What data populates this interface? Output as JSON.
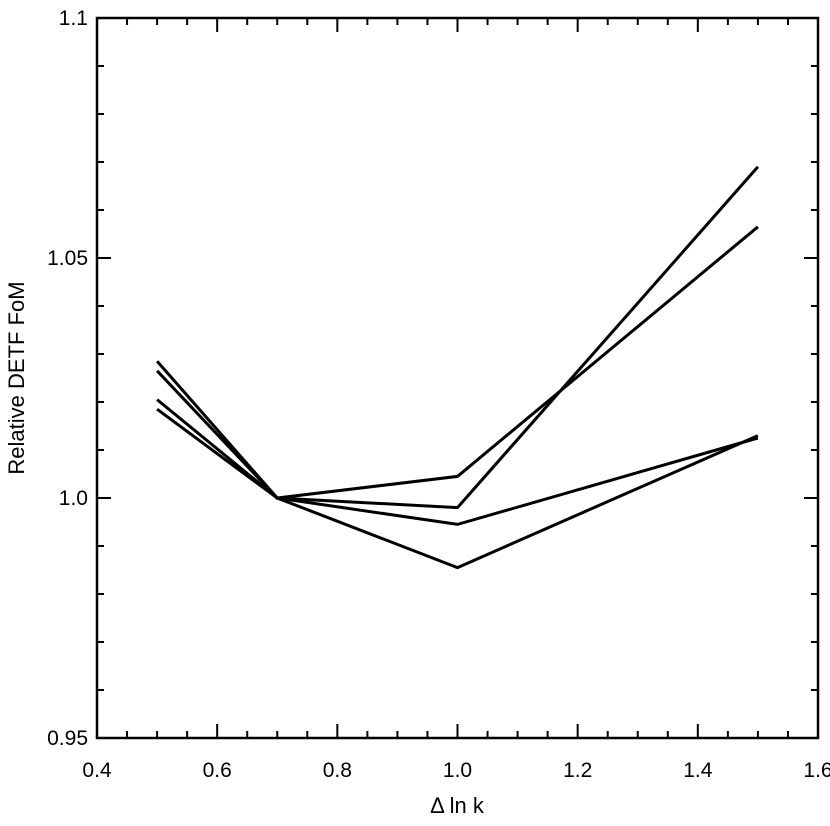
{
  "chart_data": {
    "type": "line",
    "xlabel": "Δ ln k",
    "ylabel": "Relative DETF FoM",
    "xlim": [
      0.4,
      1.6
    ],
    "ylim": [
      0.95,
      1.1
    ],
    "x_ticks": [
      0.4,
      0.6,
      0.8,
      1.0,
      1.2,
      1.4,
      1.6
    ],
    "x_tick_labels": [
      "0.4",
      "0.6",
      "0.8",
      "1.0",
      "1.2",
      "1.4",
      "1.6"
    ],
    "y_ticks": [
      0.95,
      1.0,
      1.05,
      1.1
    ],
    "y_tick_labels": [
      "0.95",
      "1.0",
      "1.05",
      "1.1"
    ],
    "grid": false,
    "legend": "none",
    "x": [
      0.5,
      0.7,
      1.0,
      1.5
    ],
    "series": [
      {
        "values": [
          1.0285,
          1.0,
          0.998,
          1.069
        ]
      },
      {
        "values": [
          1.0265,
          1.0,
          1.0045,
          1.0565
        ]
      },
      {
        "values": [
          1.0205,
          1.0,
          0.9855,
          1.013
        ]
      },
      {
        "values": [
          1.0185,
          1.0,
          0.9945,
          1.0125
        ]
      }
    ]
  }
}
